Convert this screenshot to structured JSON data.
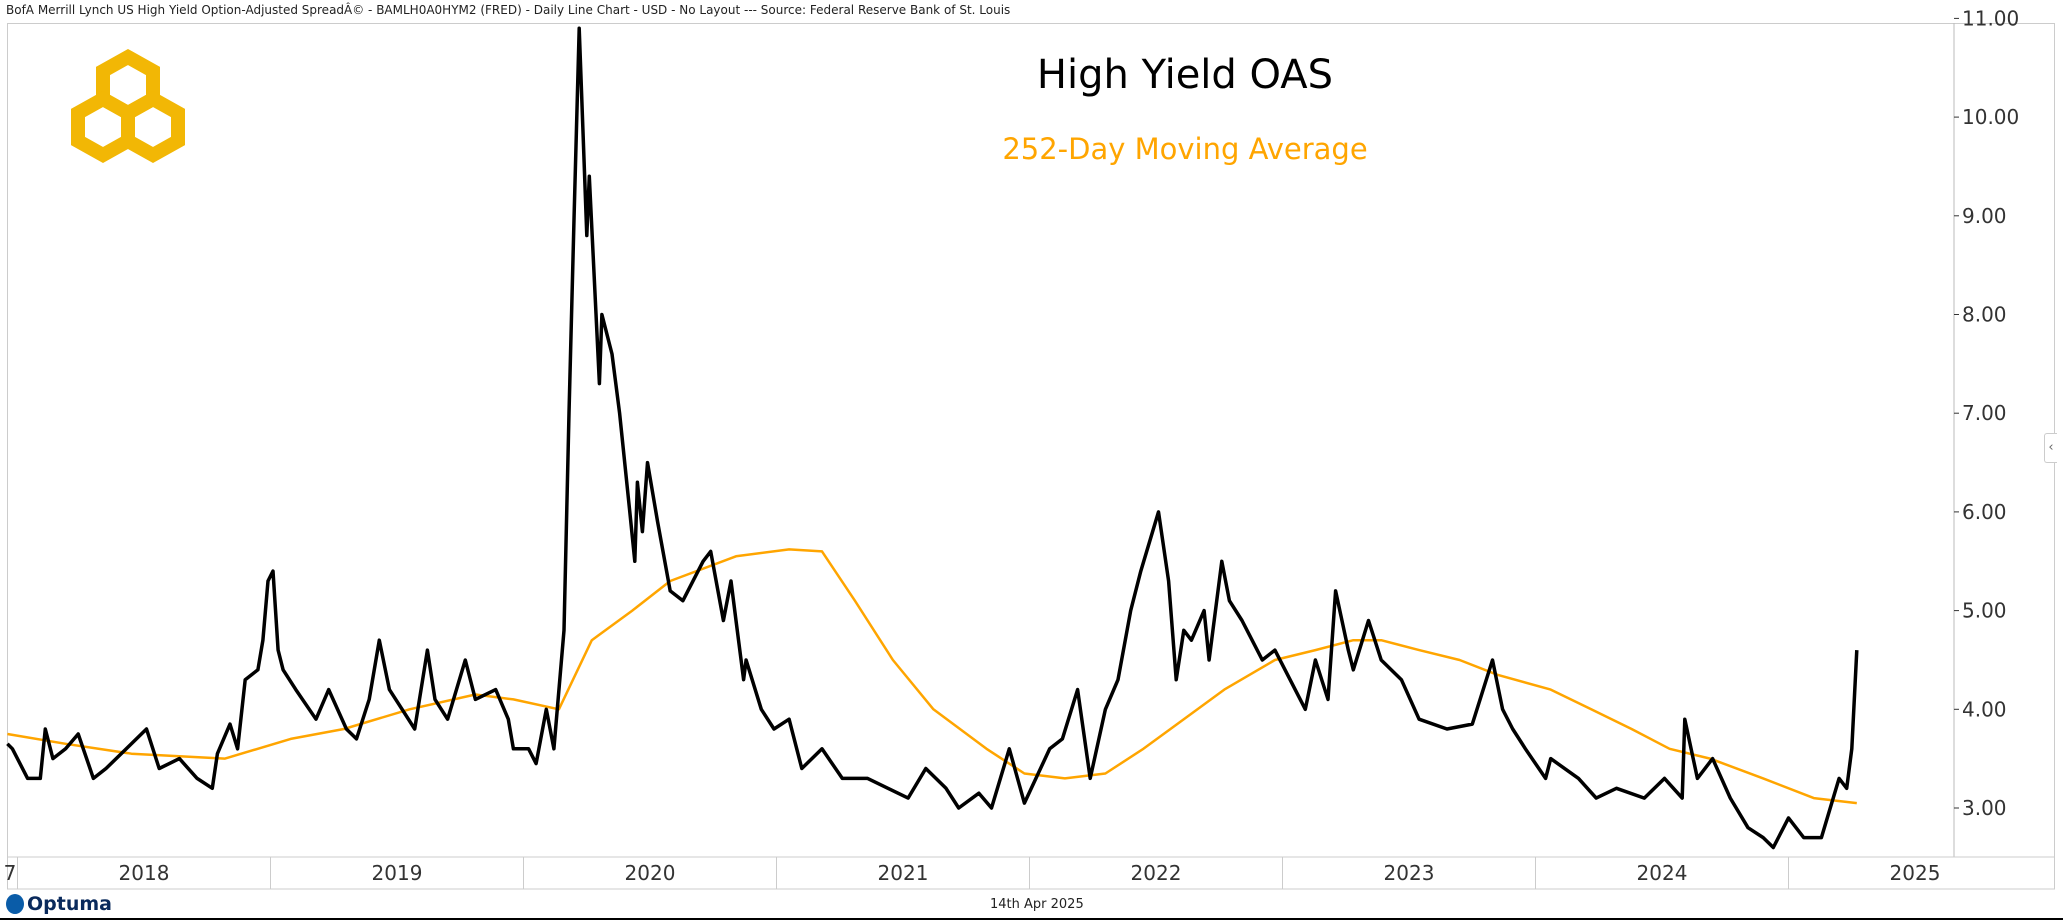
{
  "header": {
    "text": "BofA Merrill Lynch US High Yield Option-Adjusted SpreadÂ© - BAMLH0A0HYM2 (FRED) - Daily Line Chart - USD - No Layout --- Source: Federal Reserve Bank of St. Louis"
  },
  "footer": {
    "brand": "Optuma",
    "date": "14th Apr 2025"
  },
  "colors": {
    "oas": "#000000",
    "ma": "#FFA500",
    "logo": "#F2B705"
  },
  "chart_data": {
    "type": "line",
    "title": "High Yield OAS",
    "subtitle": "252-Day Moving Average",
    "xlabel": "",
    "ylabel": "",
    "ylim": [
      2.4,
      11.1
    ],
    "xlim": [
      2017.93,
      2025.55
    ],
    "y_ticks": [
      "3.00",
      "4.00",
      "5.00",
      "6.00",
      "7.00",
      "8.00",
      "9.00",
      "10.00",
      "11.00"
    ],
    "x_tick_labels": [
      "7",
      "2018",
      "2019",
      "2020",
      "2021",
      "2022",
      "2023",
      "2024",
      "2025"
    ],
    "x_tick_years": [
      2017.5,
      2018,
      2019,
      2020,
      2021,
      2022,
      2023,
      2024,
      2025
    ],
    "series": [
      {
        "name": "High Yield OAS",
        "color": "#000000",
        "x": [
          2017.96,
          2017.98,
          2018.04,
          2018.09,
          2018.11,
          2018.14,
          2018.19,
          2018.24,
          2018.3,
          2018.35,
          2018.43,
          2018.51,
          2018.56,
          2018.64,
          2018.71,
          2018.77,
          2018.79,
          2018.84,
          2018.87,
          2018.9,
          2018.95,
          2018.97,
          2018.99,
          2019.01,
          2019.03,
          2019.05,
          2019.1,
          2019.18,
          2019.23,
          2019.3,
          2019.34,
          2019.39,
          2019.43,
          2019.47,
          2019.52,
          2019.57,
          2019.62,
          2019.65,
          2019.7,
          2019.77,
          2019.81,
          2019.89,
          2019.94,
          2019.96,
          2020.02,
          2020.05,
          2020.09,
          2020.12,
          2020.16,
          2020.18,
          2020.2,
          2020.22,
          2020.25,
          2020.26,
          2020.3,
          2020.31,
          2020.35,
          2020.38,
          2020.42,
          2020.44,
          2020.45,
          2020.47,
          2020.49,
          2020.53,
          2020.58,
          2020.63,
          2020.71,
          2020.74,
          2020.79,
          2020.82,
          2020.84,
          2020.87,
          2020.88,
          2020.94,
          2020.99,
          2021.05,
          2021.1,
          2021.18,
          2021.26,
          2021.36,
          2021.52,
          2021.59,
          2021.67,
          2021.72,
          2021.8,
          2021.85,
          2021.92,
          2021.98,
          2022.08,
          2022.13,
          2022.19,
          2022.24,
          2022.3,
          2022.35,
          2022.4,
          2022.44,
          2022.51,
          2022.55,
          2022.58,
          2022.61,
          2022.64,
          2022.69,
          2022.71,
          2022.76,
          2022.79,
          2022.84,
          2022.92,
          2022.97,
          2023.09,
          2023.13,
          2023.18,
          2023.21,
          2023.26,
          2023.28,
          2023.34,
          2023.39,
          2023.47,
          2023.54,
          2023.65,
          2023.75,
          2023.83,
          2023.87,
          2023.91,
          2023.96,
          2024.04,
          2024.06,
          2024.17,
          2024.24,
          2024.32,
          2024.43,
          2024.51,
          2024.58,
          2024.59,
          2024.64,
          2024.7,
          2024.77,
          2024.84,
          2024.9,
          2024.94,
          2025.0,
          2025.06,
          2025.13,
          2025.2,
          2025.23,
          2025.25,
          2025.27
        ],
        "y": [
          3.65,
          3.6,
          3.3,
          3.3,
          3.8,
          3.5,
          3.6,
          3.75,
          3.3,
          3.4,
          3.6,
          3.8,
          3.4,
          3.5,
          3.3,
          3.2,
          3.55,
          3.85,
          3.6,
          4.3,
          4.4,
          4.7,
          5.3,
          5.4,
          4.6,
          4.4,
          4.2,
          3.9,
          4.2,
          3.8,
          3.7,
          4.1,
          4.7,
          4.2,
          4.0,
          3.8,
          4.6,
          4.1,
          3.9,
          4.5,
          4.1,
          4.2,
          3.9,
          3.6,
          3.6,
          3.45,
          4.0,
          3.6,
          4.8,
          7.0,
          9.0,
          10.9,
          8.8,
          9.4,
          7.3,
          8.0,
          7.6,
          7.0,
          6.0,
          5.5,
          6.3,
          5.8,
          6.5,
          5.9,
          5.2,
          5.1,
          5.5,
          5.6,
          4.9,
          5.3,
          4.9,
          4.3,
          4.5,
          4.0,
          3.8,
          3.9,
          3.4,
          3.6,
          3.3,
          3.3,
          3.1,
          3.4,
          3.2,
          3.0,
          3.15,
          3.0,
          3.6,
          3.05,
          3.6,
          3.7,
          4.2,
          3.3,
          4.0,
          4.3,
          5.0,
          5.4,
          6.0,
          5.3,
          4.3,
          4.8,
          4.7,
          5.0,
          4.5,
          5.5,
          5.1,
          4.9,
          4.5,
          4.6,
          4.0,
          4.5,
          4.1,
          5.2,
          4.6,
          4.4,
          4.9,
          4.5,
          4.3,
          3.9,
          3.8,
          3.85,
          4.5,
          4.0,
          3.8,
          3.6,
          3.3,
          3.5,
          3.3,
          3.1,
          3.2,
          3.1,
          3.3,
          3.1,
          3.9,
          3.3,
          3.5,
          3.1,
          2.8,
          2.7,
          2.6,
          2.9,
          2.7,
          2.7,
          3.3,
          3.2,
          3.6,
          4.6
        ]
      },
      {
        "name": "252-Day Moving Average",
        "color": "#FFA500",
        "x": [
          2017.96,
          2018.19,
          2018.45,
          2018.82,
          2019.08,
          2019.29,
          2019.55,
          2019.81,
          2019.96,
          2020.14,
          2020.27,
          2020.43,
          2020.58,
          2020.84,
          2021.05,
          2021.18,
          2021.31,
          2021.46,
          2021.62,
          2021.83,
          2021.98,
          2022.14,
          2022.3,
          2022.45,
          2022.61,
          2022.77,
          2022.97,
          2023.13,
          2023.28,
          2023.39,
          2023.54,
          2023.7,
          2023.85,
          2024.06,
          2024.22,
          2024.38,
          2024.53,
          2024.69,
          2024.9,
          2025.1,
          2025.27
        ],
        "y": [
          3.75,
          3.65,
          3.55,
          3.5,
          3.7,
          3.8,
          4.0,
          4.15,
          4.1,
          4.0,
          4.7,
          5.0,
          5.3,
          5.55,
          5.62,
          5.6,
          5.1,
          4.5,
          4.0,
          3.6,
          3.35,
          3.3,
          3.35,
          3.6,
          3.9,
          4.2,
          4.5,
          4.6,
          4.7,
          4.7,
          4.6,
          4.5,
          4.35,
          4.2,
          4.0,
          3.8,
          3.6,
          3.5,
          3.3,
          3.1,
          3.05
        ]
      }
    ]
  }
}
